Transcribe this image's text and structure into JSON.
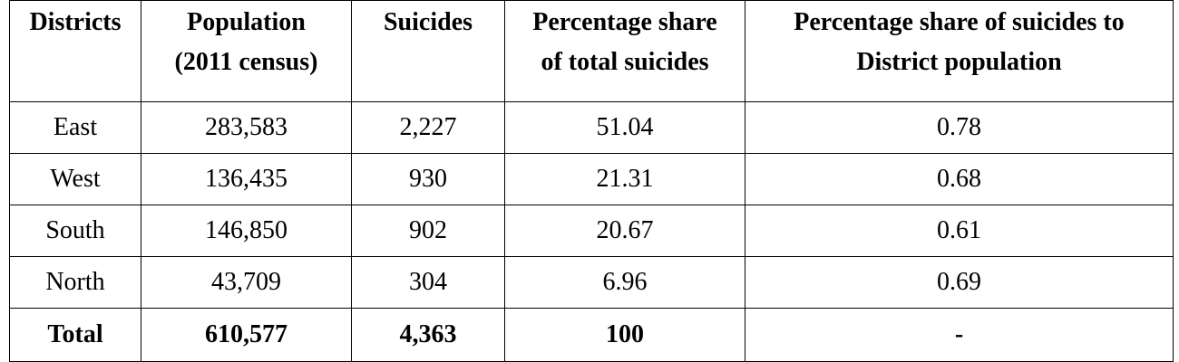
{
  "table": {
    "headers": [
      {
        "line1": "Districts",
        "line2": ""
      },
      {
        "line1": "Population",
        "line2": "(2011 census)"
      },
      {
        "line1": "Suicides",
        "line2": ""
      },
      {
        "line1": "Percentage share",
        "line2": "of total suicides"
      },
      {
        "line1": "Percentage share of suicides to",
        "line2": "District population"
      }
    ],
    "rows": [
      [
        "East",
        "283,583",
        "2,227",
        "51.04",
        "0.78"
      ],
      [
        "West",
        "136,435",
        "930",
        "21.31",
        "0.68"
      ],
      [
        "South",
        "146,850",
        "902",
        "20.67",
        "0.61"
      ],
      [
        "North",
        "43,709",
        "304",
        "6.96",
        "0.69"
      ]
    ],
    "total": [
      "Total",
      "610,577",
      "4,363",
      "100",
      "-"
    ]
  }
}
